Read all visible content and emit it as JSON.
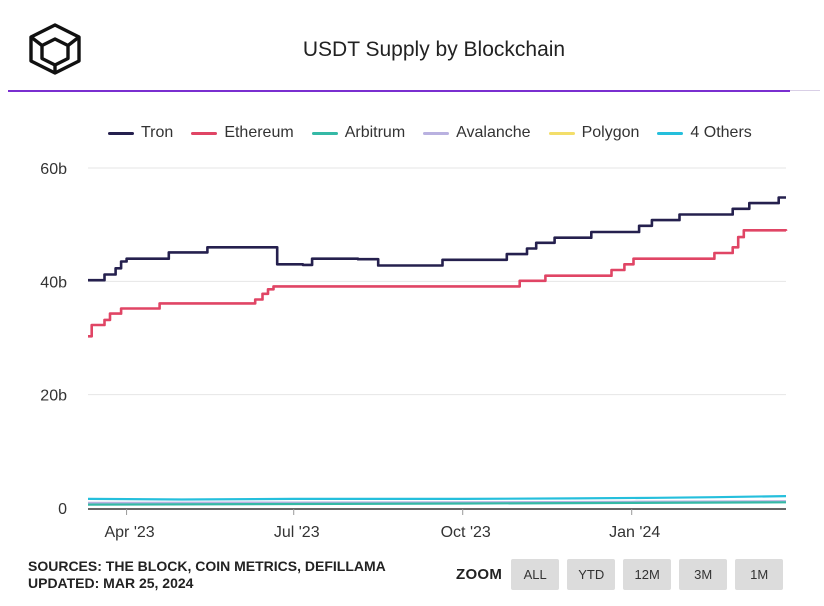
{
  "header": {
    "title": "USDT Supply by Blockchain"
  },
  "colors": {
    "accent": "#7a2fd0",
    "gridline": "#e6e6e6",
    "text": "#222222"
  },
  "legend": [
    {
      "name": "Tron",
      "color": "#25204e"
    },
    {
      "name": "Ethereum",
      "color": "#e04565"
    },
    {
      "name": "Arbitrum",
      "color": "#35b9a6"
    },
    {
      "name": "Avalanche",
      "color": "#b9b1e0"
    },
    {
      "name": "Polygon",
      "color": "#f3de6a"
    },
    {
      "name": "4 Others",
      "color": "#25bfdc"
    }
  ],
  "chart_data": {
    "type": "line",
    "title": "USDT Supply by Blockchain",
    "xlabel": "",
    "ylabel": "",
    "x_range": [
      "2023-03-11",
      "2024-03-25"
    ],
    "ylim": [
      0,
      60
    ],
    "y_unit": "b",
    "y_ticks": [
      0,
      20,
      40,
      60
    ],
    "y_tick_labels": [
      "0",
      "20b",
      "40b",
      "60b"
    ],
    "x_ticks": [
      "2023-04-01",
      "2023-07-01",
      "2023-10-01",
      "2024-01-01"
    ],
    "x_tick_labels": [
      "Apr '23",
      "Jul '23",
      "Oct '23",
      "Jan '24"
    ],
    "grid": true,
    "legend_position": "top",
    "series": [
      {
        "name": "Tron",
        "color": "#25204e",
        "step": true,
        "points": [
          [
            "2023-03-11",
            40.2
          ],
          [
            "2023-03-20",
            41.2
          ],
          [
            "2023-03-26",
            42.3
          ],
          [
            "2023-03-29",
            43.5
          ],
          [
            "2023-04-01",
            44.0
          ],
          [
            "2023-04-24",
            45.1
          ],
          [
            "2023-05-15",
            46.0
          ],
          [
            "2023-06-22",
            43.0
          ],
          [
            "2023-07-06",
            42.9
          ],
          [
            "2023-07-11",
            44.0
          ],
          [
            "2023-08-05",
            43.9
          ],
          [
            "2023-08-16",
            42.8
          ],
          [
            "2023-09-09",
            42.8
          ],
          [
            "2023-09-20",
            43.8
          ],
          [
            "2023-10-25",
            44.8
          ],
          [
            "2023-11-05",
            45.8
          ],
          [
            "2023-11-10",
            46.8
          ],
          [
            "2023-11-20",
            47.7
          ],
          [
            "2023-12-10",
            48.7
          ],
          [
            "2024-01-05",
            49.8
          ],
          [
            "2024-01-12",
            50.8
          ],
          [
            "2024-01-27",
            51.8
          ],
          [
            "2024-02-25",
            52.8
          ],
          [
            "2024-03-05",
            53.8
          ],
          [
            "2024-03-21",
            54.8
          ],
          [
            "2024-03-25",
            54.8
          ]
        ]
      },
      {
        "name": "Ethereum",
        "color": "#e04565",
        "step": true,
        "points": [
          [
            "2023-03-11",
            30.3
          ],
          [
            "2023-03-13",
            32.3
          ],
          [
            "2023-03-20",
            33.2
          ],
          [
            "2023-03-23",
            34.3
          ],
          [
            "2023-03-29",
            35.2
          ],
          [
            "2023-04-19",
            36.1
          ],
          [
            "2023-06-10",
            36.8
          ],
          [
            "2023-06-14",
            37.8
          ],
          [
            "2023-06-17",
            38.6
          ],
          [
            "2023-06-20",
            39.1
          ],
          [
            "2023-11-01",
            40.1
          ],
          [
            "2023-11-15",
            41.0
          ],
          [
            "2023-12-21",
            42.0
          ],
          [
            "2023-12-28",
            43.0
          ],
          [
            "2024-01-02",
            44.0
          ],
          [
            "2024-02-15",
            45.0
          ],
          [
            "2024-02-25",
            46.0
          ],
          [
            "2024-02-28",
            47.8
          ],
          [
            "2024-03-02",
            49.0
          ],
          [
            "2024-03-25",
            48.9
          ]
        ]
      },
      {
        "name": "Arbitrum",
        "color": "#35b9a6",
        "step": false,
        "points": [
          [
            "2023-03-11",
            0.6
          ],
          [
            "2023-07-01",
            0.7
          ],
          [
            "2023-10-01",
            0.8
          ],
          [
            "2024-01-01",
            0.9
          ],
          [
            "2024-03-25",
            1.0
          ]
        ]
      },
      {
        "name": "Avalanche",
        "color": "#b9b1e0",
        "step": false,
        "points": [
          [
            "2023-03-11",
            0.9
          ],
          [
            "2023-07-01",
            0.95
          ],
          [
            "2023-10-01",
            1.0
          ],
          [
            "2024-01-01",
            1.1
          ],
          [
            "2024-03-25",
            1.2
          ]
        ]
      },
      {
        "name": "Polygon",
        "color": "#f3de6a",
        "step": false,
        "points": [
          [
            "2023-03-11",
            0.8
          ],
          [
            "2023-07-01",
            0.85
          ],
          [
            "2023-10-01",
            0.9
          ],
          [
            "2024-01-01",
            1.0
          ],
          [
            "2024-03-25",
            1.1
          ]
        ]
      },
      {
        "name": "4 Others",
        "color": "#25bfdc",
        "step": false,
        "points": [
          [
            "2023-03-11",
            1.6
          ],
          [
            "2023-05-01",
            1.5
          ],
          [
            "2023-07-01",
            1.6
          ],
          [
            "2023-10-01",
            1.6
          ],
          [
            "2023-12-01",
            1.7
          ],
          [
            "2024-01-15",
            1.8
          ],
          [
            "2024-02-15",
            1.9
          ],
          [
            "2024-03-25",
            2.1
          ]
        ]
      }
    ]
  },
  "footer": {
    "sources_line": "SOURCES: THE BLOCK, COIN METRICS, DEFILLAMA",
    "updated_line": "UPDATED: MAR 25, 2024"
  },
  "zoom": {
    "label": "ZOOM",
    "buttons": [
      "ALL",
      "YTD",
      "12M",
      "3M",
      "1M"
    ]
  }
}
